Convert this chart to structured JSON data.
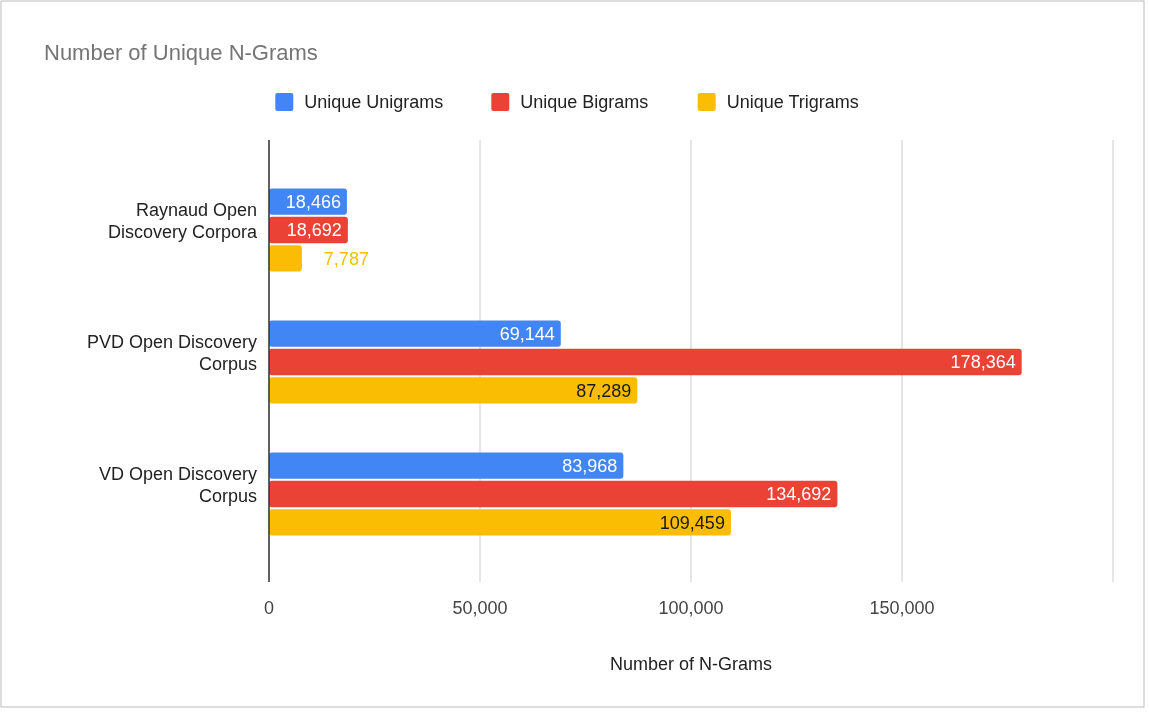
{
  "chart_data": {
    "type": "bar",
    "orientation": "horizontal",
    "title": "Number of Unique N-Grams",
    "xlabel": "Number of N-Grams",
    "categories": [
      "Raynaud Open Discovery Corpora",
      "PVD Open Discovery Corpus",
      "VD Open Discovery Corpus"
    ],
    "series": [
      {
        "name": "Unique Unigrams",
        "color": "#4285f4",
        "values": [
          18466,
          69144,
          83968
        ],
        "value_labels": [
          "18,466",
          "69,144",
          "83,968"
        ]
      },
      {
        "name": "Unique Bigrams",
        "color": "#ea4335",
        "values": [
          18692,
          178364,
          134692
        ],
        "value_labels": [
          "18,692",
          "178,364",
          "134,692"
        ]
      },
      {
        "name": "Unique Trigrams",
        "color": "#fbbc04",
        "values": [
          7787,
          87289,
          109459
        ],
        "value_labels": [
          "7,787",
          "87,289",
          "109,459"
        ]
      }
    ],
    "xlim": [
      0,
      200000
    ],
    "xticks": [
      0,
      {
        "value": 50000,
        "label": "50,000"
      },
      {
        "value": 100000,
        "label": "100,000"
      },
      {
        "value": 150000,
        "label": "150,000"
      },
      {
        "value": 200000,
        "label": null
      }
    ],
    "grid": "x",
    "legend": "top"
  }
}
